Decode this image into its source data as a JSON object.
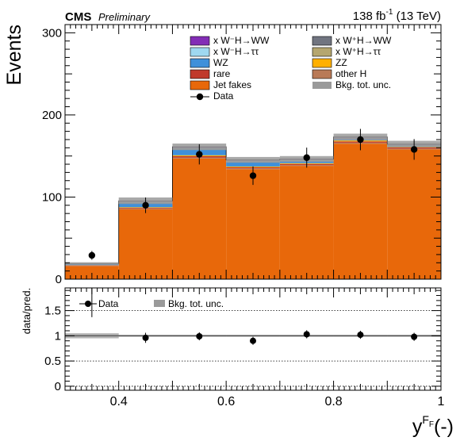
{
  "header": {
    "experiment": "CMS",
    "status": "Preliminary",
    "lumi": "138 fb",
    "lumi_exp": "-1",
    "energy": " (13 TeV)"
  },
  "chart_data": [
    {
      "type": "bar",
      "panel": "main",
      "ylabel": "Events",
      "ylim": [
        0,
        310
      ],
      "yticks": [
        0,
        100,
        200,
        300
      ],
      "bin_edges": [
        0.3,
        0.4,
        0.5,
        0.6,
        0.7,
        0.8,
        0.9,
        1.0
      ],
      "stack_series": [
        {
          "name": "Jet fakes",
          "color": "#e8680a",
          "values": [
            16,
            85,
            147,
            134,
            138,
            165,
            158
          ]
        },
        {
          "name": "other H",
          "color": "#b97a57",
          "values": [
            0.3,
            0.8,
            1.2,
            1.0,
            1.0,
            1.2,
            1.0
          ]
        },
        {
          "name": "rare",
          "color": "#c0392b",
          "values": [
            0.5,
            1.0,
            1.5,
            1.2,
            1.3,
            1.5,
            1.3
          ]
        },
        {
          "name": "ZZ",
          "color": "#ffb000",
          "values": [
            0.3,
            0.8,
            1.2,
            1.0,
            1.0,
            1.2,
            1.0
          ]
        },
        {
          "name": "WZ",
          "color": "#3f90da",
          "values": [
            1.2,
            5.5,
            7.0,
            5.5,
            2.5,
            1.5,
            0.8
          ]
        },
        {
          "name": "x W+H→ττ",
          "color": "#b5a66f",
          "values": [
            0.1,
            0.3,
            0.5,
            0.4,
            0.4,
            0.4,
            0.3
          ]
        },
        {
          "name": "x W-H→ττ",
          "color": "#9fd8f0",
          "values": [
            0.1,
            0.3,
            0.5,
            0.4,
            0.4,
            0.4,
            0.3
          ]
        },
        {
          "name": "x W+H→WW",
          "color": "#717581",
          "values": [
            0.4,
            1.2,
            1.5,
            1.2,
            1.2,
            1.3,
            1.2
          ]
        },
        {
          "name": "x W-H→WW",
          "color": "#832db6",
          "values": [
            0.2,
            0.6,
            0.8,
            0.6,
            0.6,
            0.7,
            0.6
          ]
        }
      ],
      "uncertainty_halfwidth": [
        1.5,
        4,
        4,
        3.5,
        3.5,
        4,
        4
      ],
      "data": {
        "name": "Data",
        "x": [
          0.35,
          0.45,
          0.55,
          0.65,
          0.75,
          0.85,
          0.95
        ],
        "y": [
          29,
          90,
          152,
          126,
          148,
          170,
          158
        ],
        "yerr": [
          5.4,
          9.5,
          12.3,
          11.2,
          12.2,
          13.0,
          12.6
        ]
      },
      "legend": {
        "placement": "top-right",
        "entries": [
          {
            "label": "x W⁻H→WW",
            "series": "x W-H→WW",
            "kind": "box"
          },
          {
            "label": "x W⁺H→WW",
            "series": "x W+H→WW",
            "kind": "box"
          },
          {
            "label": "x W⁻H→ττ",
            "series": "x W-H→ττ",
            "kind": "box"
          },
          {
            "label": "x W⁺H→ττ",
            "series": "x W+H→ττ",
            "kind": "box"
          },
          {
            "label": "WZ",
            "series": "WZ",
            "kind": "box"
          },
          {
            "label": "ZZ",
            "series": "ZZ",
            "kind": "box"
          },
          {
            "label": "rare",
            "series": "rare",
            "kind": "box"
          },
          {
            "label": "other H",
            "series": "other H",
            "kind": "box"
          },
          {
            "label": "Jet fakes",
            "series": "Jet fakes",
            "kind": "box"
          },
          {
            "label": "Bkg. tot. unc.",
            "series": "unc",
            "kind": "band"
          },
          {
            "label": "Data",
            "series": "data",
            "kind": "marker"
          }
        ]
      },
      "colors": {
        "unc_band": "#9a9a9a"
      }
    },
    {
      "type": "scatter",
      "panel": "ratio",
      "ylabel": "data/pred.",
      "xlabel_main": "y",
      "xlabel_sup": "F",
      "xlabel_sub": "F",
      "xlabel_unit": "(-)",
      "xlim": [
        0.3,
        1.0
      ],
      "xticks": [
        "0.4",
        "0.6",
        "0.8",
        "1"
      ],
      "xtick_values": [
        0.4,
        0.6,
        0.8,
        1.0
      ],
      "ylim": [
        -0.08,
        1.95
      ],
      "yticks": [
        "0",
        "0.5",
        "1",
        "1.5"
      ],
      "ytick_values": [
        0,
        0.5,
        1,
        1.5
      ],
      "gridlines": [
        0,
        0.5,
        1,
        1.5
      ],
      "points": {
        "x": [
          0.45,
          0.55,
          0.65,
          0.75,
          0.85,
          0.95
        ],
        "y": [
          0.96,
          0.99,
          0.9,
          1.03,
          1.02,
          0.98
        ],
        "yerr": [
          0.1,
          0.08,
          0.08,
          0.08,
          0.08,
          0.08
        ]
      },
      "offscale_point": {
        "x": 0.35,
        "y_min_visible": 1.37
      },
      "unc_band_halfwidth": [
        0.05,
        0.02,
        0.02,
        0.02,
        0.02,
        0.02,
        0.02
      ],
      "legend": [
        {
          "label": "Data",
          "kind": "marker"
        },
        {
          "label": "Bkg. tot. unc.",
          "kind": "band"
        }
      ]
    }
  ]
}
